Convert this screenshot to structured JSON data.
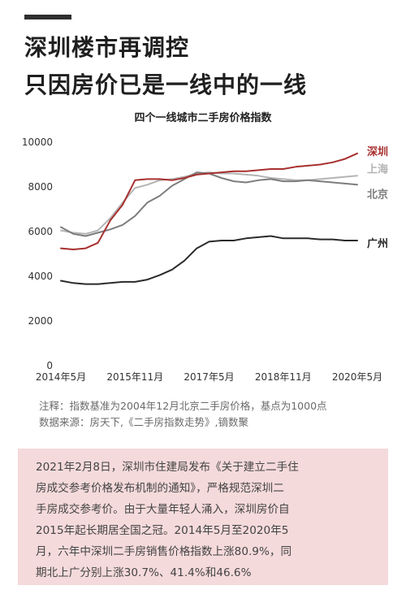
{
  "headline": {
    "line1": "深圳楼市再调控",
    "line2": "只因房价已是一线中的一线"
  },
  "notes": {
    "line1": "注释：指数基准为2004年12月北京二手房价格，基点为1000点",
    "line2": "数据来源：房天下,《二手房指数走势》,镝数聚"
  },
  "info_box": {
    "lines": [
      "2021年2月8日，深圳市住建局发布《关于建立二手住",
      "房成交参考价格发布机制的通知》，严格规范深圳二",
      "手房成交参考价。由于大量年轻人涌入，深圳房价自",
      "2015年起长期居全国之冠。2014年5月至2020年5",
      "月，六年中深圳二手房销售价格指数上涨80.9%，同",
      "期北上广分别上涨30.7%、41.4%和46.6%"
    ]
  },
  "chart_data": {
    "type": "line",
    "title": "四个一线城市二手房价格指数",
    "xlabel": "",
    "ylabel": "",
    "ylim": [
      0,
      10000
    ],
    "yticks": [
      0,
      2000,
      4000,
      6000,
      8000,
      10000
    ],
    "xticks": [
      "2014年5月",
      "2015年11月",
      "2017年5月",
      "2018年11月",
      "2020年5月"
    ],
    "grid": false,
    "legend": "inline labels at line ends",
    "x": [
      "2014-05",
      "2014-08",
      "2014-11",
      "2015-02",
      "2015-05",
      "2015-08",
      "2015-11",
      "2016-02",
      "2016-05",
      "2016-08",
      "2016-11",
      "2017-02",
      "2017-05",
      "2017-08",
      "2017-11",
      "2018-02",
      "2018-05",
      "2018-08",
      "2018-11",
      "2019-02",
      "2019-05",
      "2019-08",
      "2019-11",
      "2020-02",
      "2020-05"
    ],
    "series": [
      {
        "name": "深圳",
        "color": "#a7302f",
        "values": [
          5250,
          5200,
          5250,
          5500,
          6500,
          7200,
          8300,
          8350,
          8350,
          8300,
          8400,
          8550,
          8600,
          8650,
          8700,
          8700,
          8750,
          8800,
          8800,
          8900,
          8950,
          9000,
          9100,
          9250,
          9500
        ]
      },
      {
        "name": "上海",
        "color": "#b4b4b4",
        "values": [
          6050,
          5950,
          5900,
          6050,
          6600,
          7300,
          7950,
          8100,
          8300,
          8350,
          8450,
          8600,
          8650,
          8600,
          8600,
          8550,
          8500,
          8400,
          8350,
          8300,
          8300,
          8350,
          8400,
          8450,
          8500
        ]
      },
      {
        "name": "北京",
        "color": "#7d7d7d",
        "values": [
          6200,
          5900,
          5800,
          5950,
          6100,
          6300,
          6700,
          7300,
          7600,
          8050,
          8350,
          8650,
          8600,
          8400,
          8250,
          8200,
          8300,
          8350,
          8250,
          8250,
          8300,
          8250,
          8200,
          8150,
          8100
        ]
      },
      {
        "name": "广州",
        "color": "#2b2b2b",
        "values": [
          3800,
          3700,
          3650,
          3650,
          3700,
          3750,
          3750,
          3850,
          4050,
          4300,
          4700,
          5250,
          5550,
          5600,
          5600,
          5700,
          5750,
          5800,
          5700,
          5700,
          5700,
          5650,
          5650,
          5600,
          5600
        ]
      }
    ]
  }
}
